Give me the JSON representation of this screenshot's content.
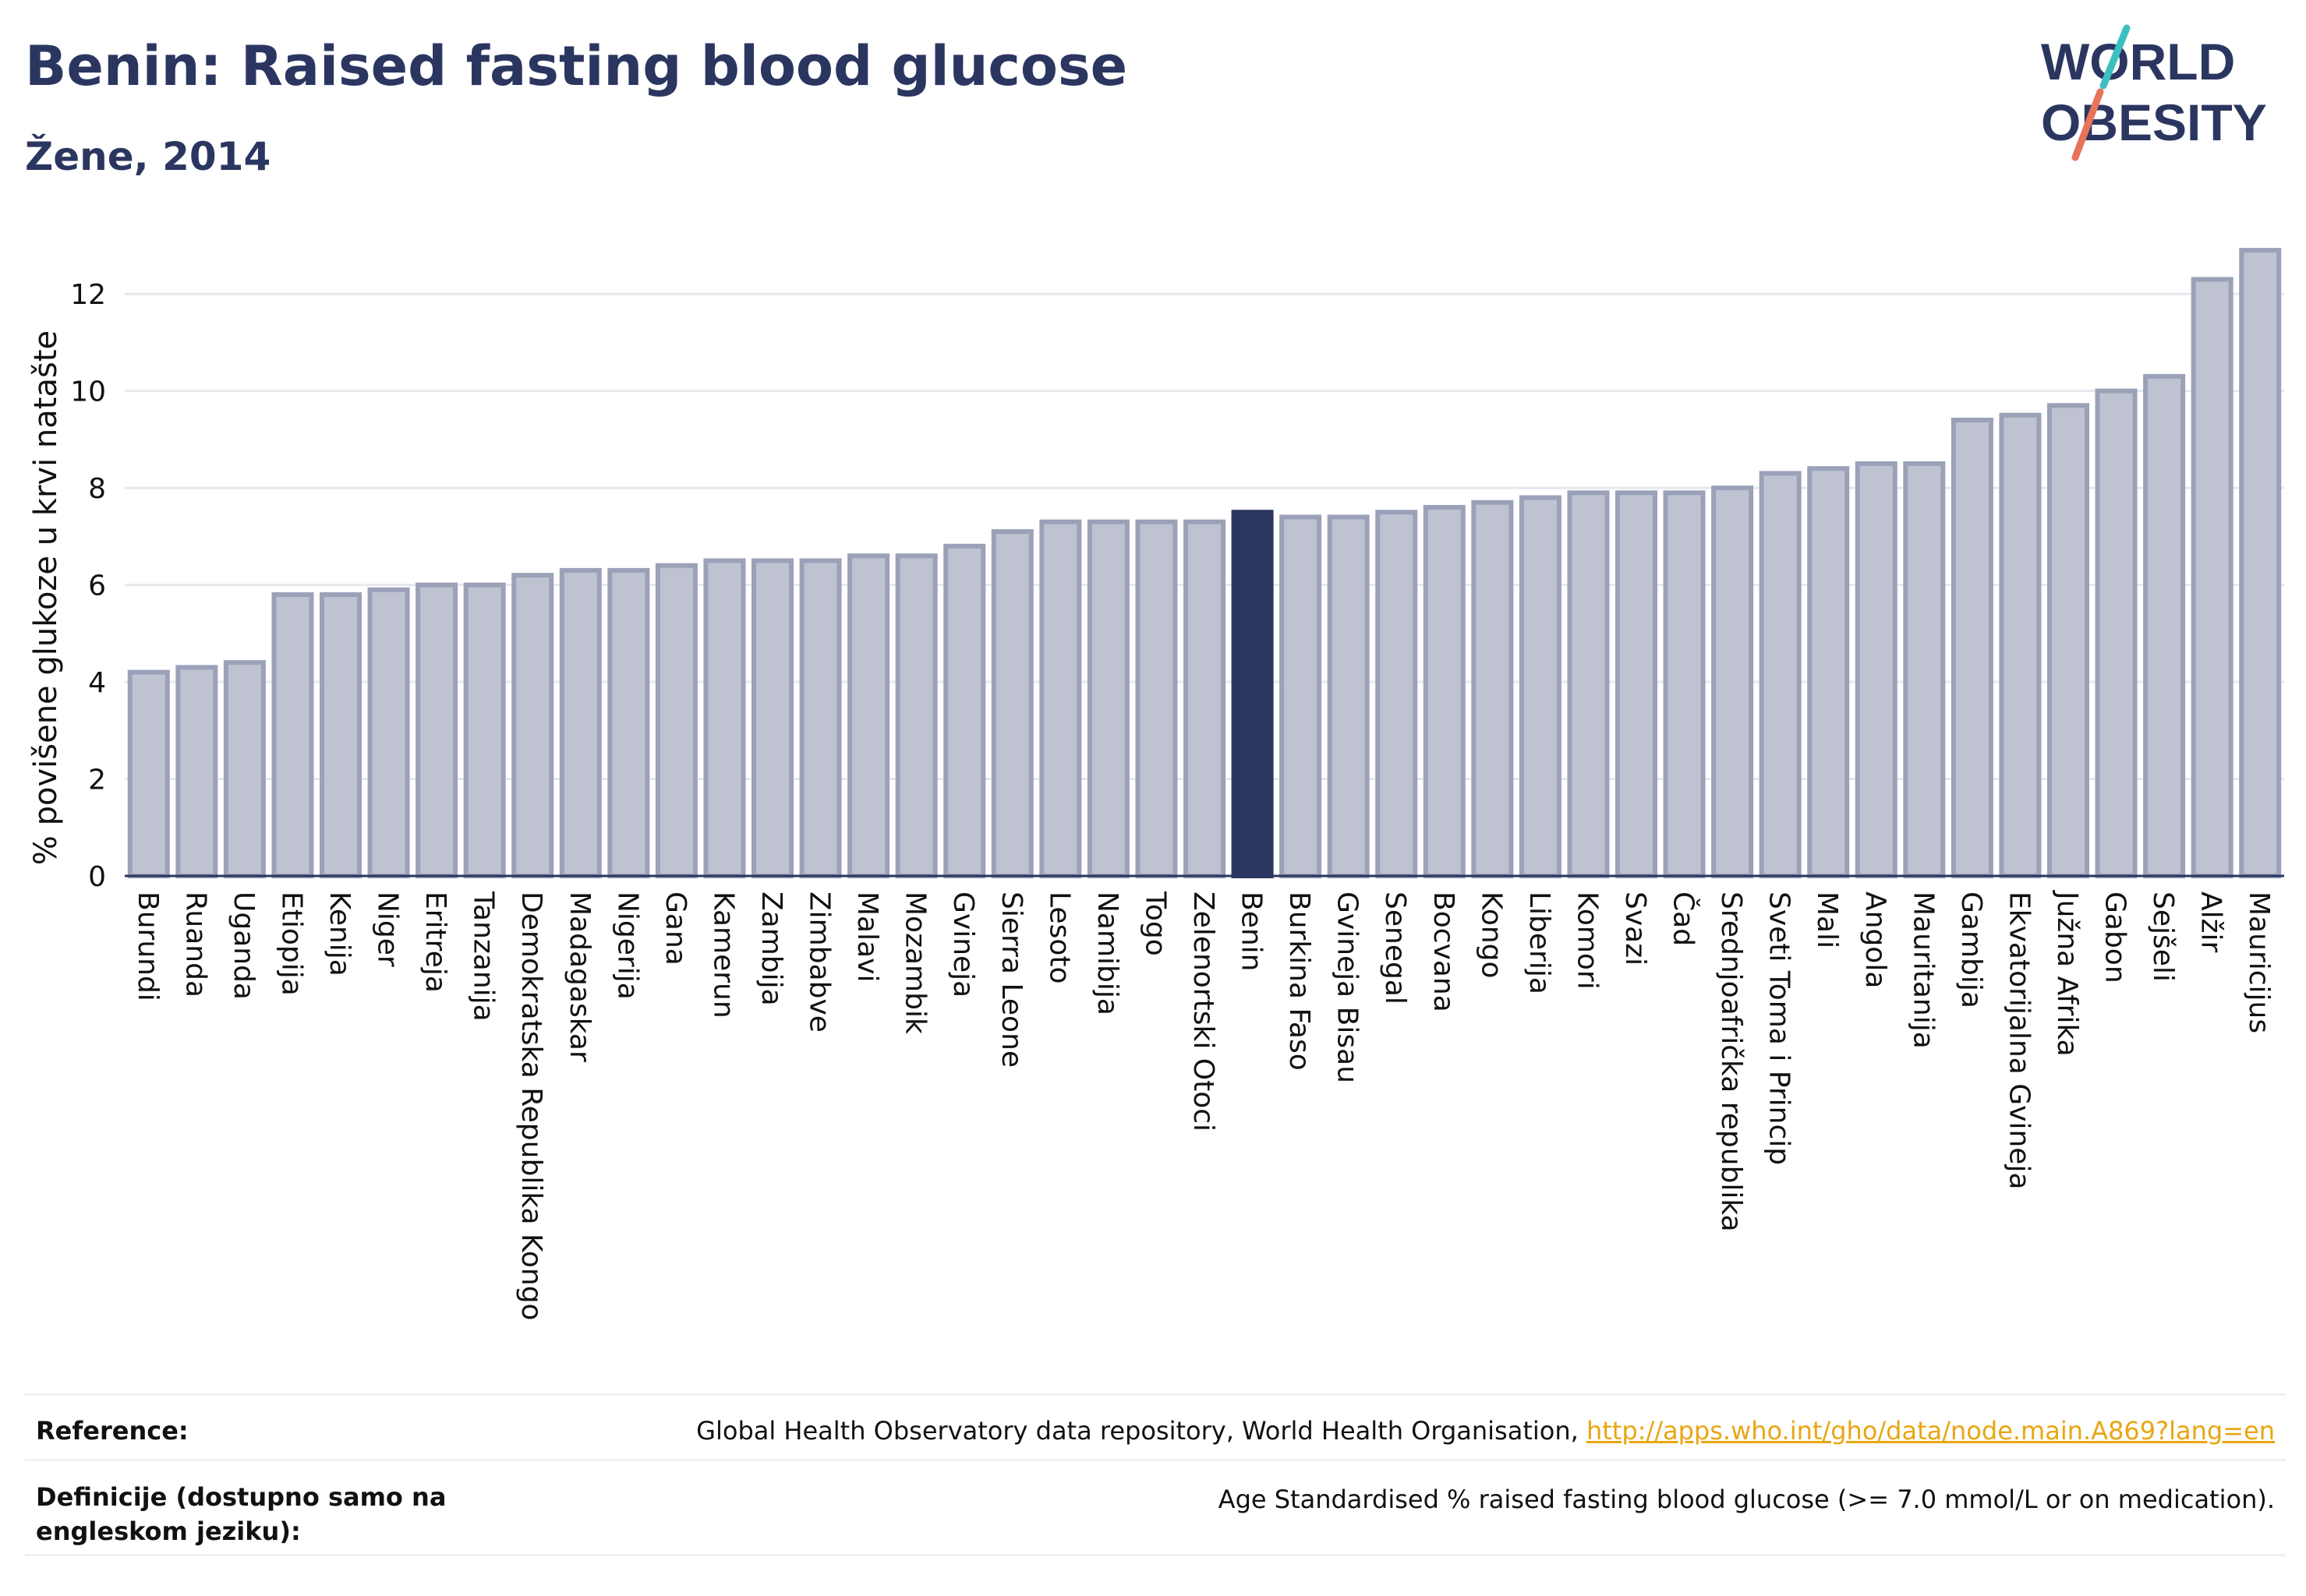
{
  "header": {
    "title": "Benin: Raised fasting blood glucose",
    "subtitle": "Žene, 2014"
  },
  "logo": {
    "line1": "WORLD",
    "line2": "OBESITY",
    "colors": {
      "text": "#2b3660",
      "slash_teal": "#3bbfbf",
      "slash_coral": "#e8735a"
    }
  },
  "chart_data": {
    "type": "bar",
    "ylabel": "% povišene glukoze u krvi natašte",
    "xlabel": "",
    "ylim": [
      0,
      13.4
    ],
    "yticks": [
      0,
      2,
      4,
      6,
      8,
      10,
      12
    ],
    "grid": true,
    "highlight": "Benin",
    "colors": {
      "bar": "#bfc3d1",
      "bar_stroke": "#9aa1b8",
      "highlight": "#2b3660"
    },
    "categories": [
      "Burundi",
      "Ruanda",
      "Uganda",
      "Etiopija",
      "Kenija",
      "Niger",
      "Eritreja",
      "Tanzanija",
      "Demokratska Republika Kongo",
      "Madagaskar",
      "Nigerija",
      "Gana",
      "Kamerun",
      "Zambija",
      "Zimbabve",
      "Malavi",
      "Mozambik",
      "Gvineja",
      "Sierra Leone",
      "Lesoto",
      "Namibija",
      "Togo",
      "Zelenortski Otoci",
      "Benin",
      "Burkina Faso",
      "Gvineja Bisau",
      "Senegal",
      "Bocvana",
      "Kongo",
      "Liberija",
      "Komori",
      "Svazi",
      "Čad",
      "Srednjoafrička republika",
      "Sveti Toma i Princip",
      "Mali",
      "Angola",
      "Mauritanija",
      "Gambija",
      "Ekvatorijalna Gvineja",
      "Južna Afrika",
      "Gabon",
      "Sejšeli",
      "Alžir",
      "Mauricijus"
    ],
    "values": [
      4.2,
      4.3,
      4.4,
      5.8,
      5.8,
      5.9,
      6.0,
      6.0,
      6.2,
      6.3,
      6.3,
      6.4,
      6.5,
      6.5,
      6.5,
      6.6,
      6.6,
      6.8,
      7.1,
      7.3,
      7.3,
      7.3,
      7.3,
      7.5,
      7.4,
      7.4,
      7.5,
      7.6,
      7.7,
      7.8,
      7.9,
      7.9,
      7.9,
      8.0,
      8.3,
      8.4,
      8.5,
      8.5,
      9.4,
      9.5,
      9.7,
      10.0,
      10.3,
      12.3,
      12.9
    ]
  },
  "footer": {
    "reference_label": "Reference:",
    "reference_text": "Global Health Observatory data repository, World Health Organisation, ",
    "reference_link": "http://apps.who.int/gho/data/node.main.A869?lang=en",
    "definition_label": "Definicije (dostupno samo na engleskom jeziku):",
    "definition_text": "Age Standardised % raised fasting blood glucose (>= 7.0 mmol/L or on medication)."
  }
}
